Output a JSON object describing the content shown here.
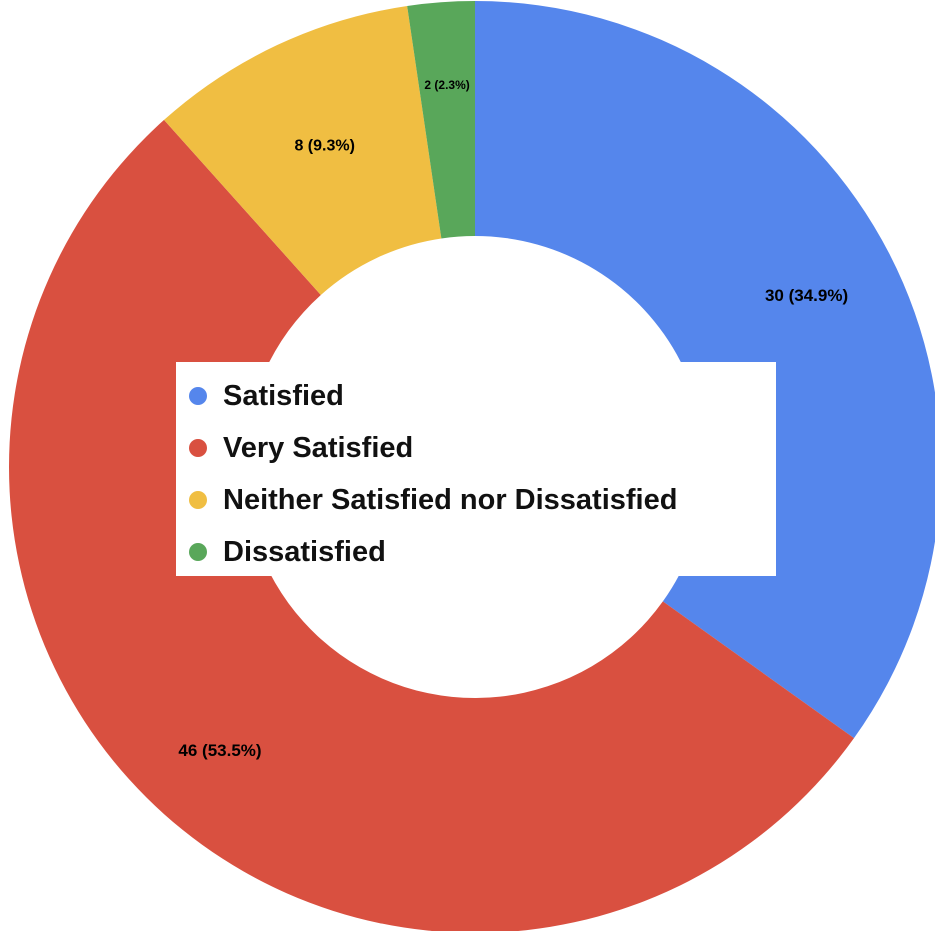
{
  "chart_data": {
    "type": "pie",
    "title": "",
    "categories": [
      "Satisfied",
      "Very Satisfied",
      "Neither Satisfied nor Dissatisfied",
      "Dissatisfied"
    ],
    "values": [
      30,
      46,
      8,
      2
    ],
    "data_labels": [
      "30 (34.9%)",
      "46 (53.5%)",
      "8 (9.3%)",
      "2 (2.3%)"
    ],
    "colors": [
      "#5586ec",
      "#d95040",
      "#f0be42",
      "#59a75a"
    ],
    "donut": true,
    "legend_position": "center"
  },
  "legend": {
    "items": [
      {
        "label": "Satisfied",
        "color": "#5586ec"
      },
      {
        "label": "Very Satisfied",
        "color": "#d95040"
      },
      {
        "label": "Neither Satisfied nor Dissatisfied",
        "color": "#f0be42"
      },
      {
        "label": "Dissatisfied",
        "color": "#59a75a"
      }
    ]
  }
}
